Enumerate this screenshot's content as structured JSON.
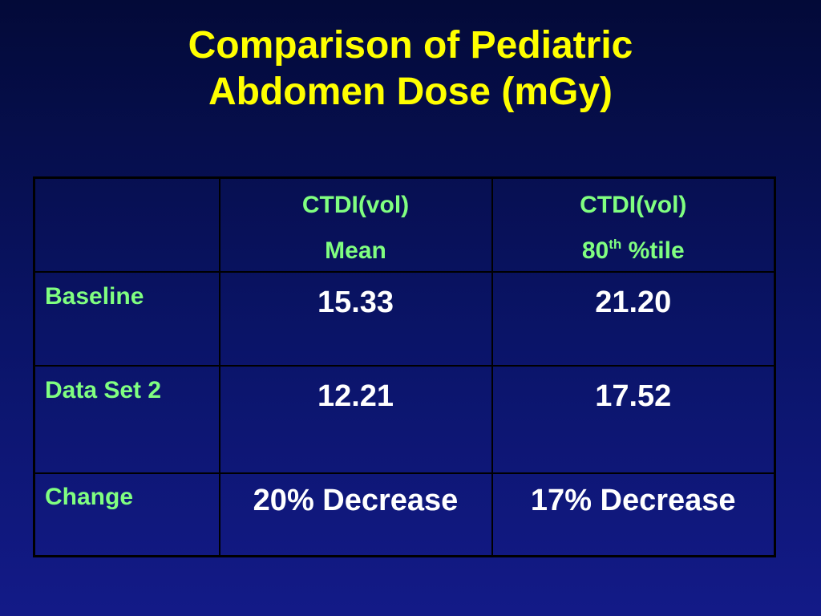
{
  "title": {
    "line1": "Comparison of Pediatric",
    "line2": "Abdomen Dose (mGy)"
  },
  "table": {
    "columns": [
      {
        "line1": "CTDI(vol)",
        "line2": "Mean",
        "line2_sup": "",
        "line2_suffix": ""
      },
      {
        "line1": "CTDI(vol)",
        "line2": "80",
        "line2_sup": "th",
        "line2_suffix": " %tile"
      }
    ],
    "rows": [
      {
        "label": "Baseline",
        "values": [
          "15.33",
          "21.20"
        ]
      },
      {
        "label": "Data Set 2",
        "values": [
          "12.21",
          "17.52"
        ]
      },
      {
        "label": "Change",
        "values": [
          "20% Decrease",
          "17% Decrease"
        ]
      }
    ]
  },
  "colors": {
    "title": "#ffff00",
    "header_text": "#80ff80",
    "value_text": "#ffffff",
    "background": "#0a1468",
    "border": "#000000"
  }
}
